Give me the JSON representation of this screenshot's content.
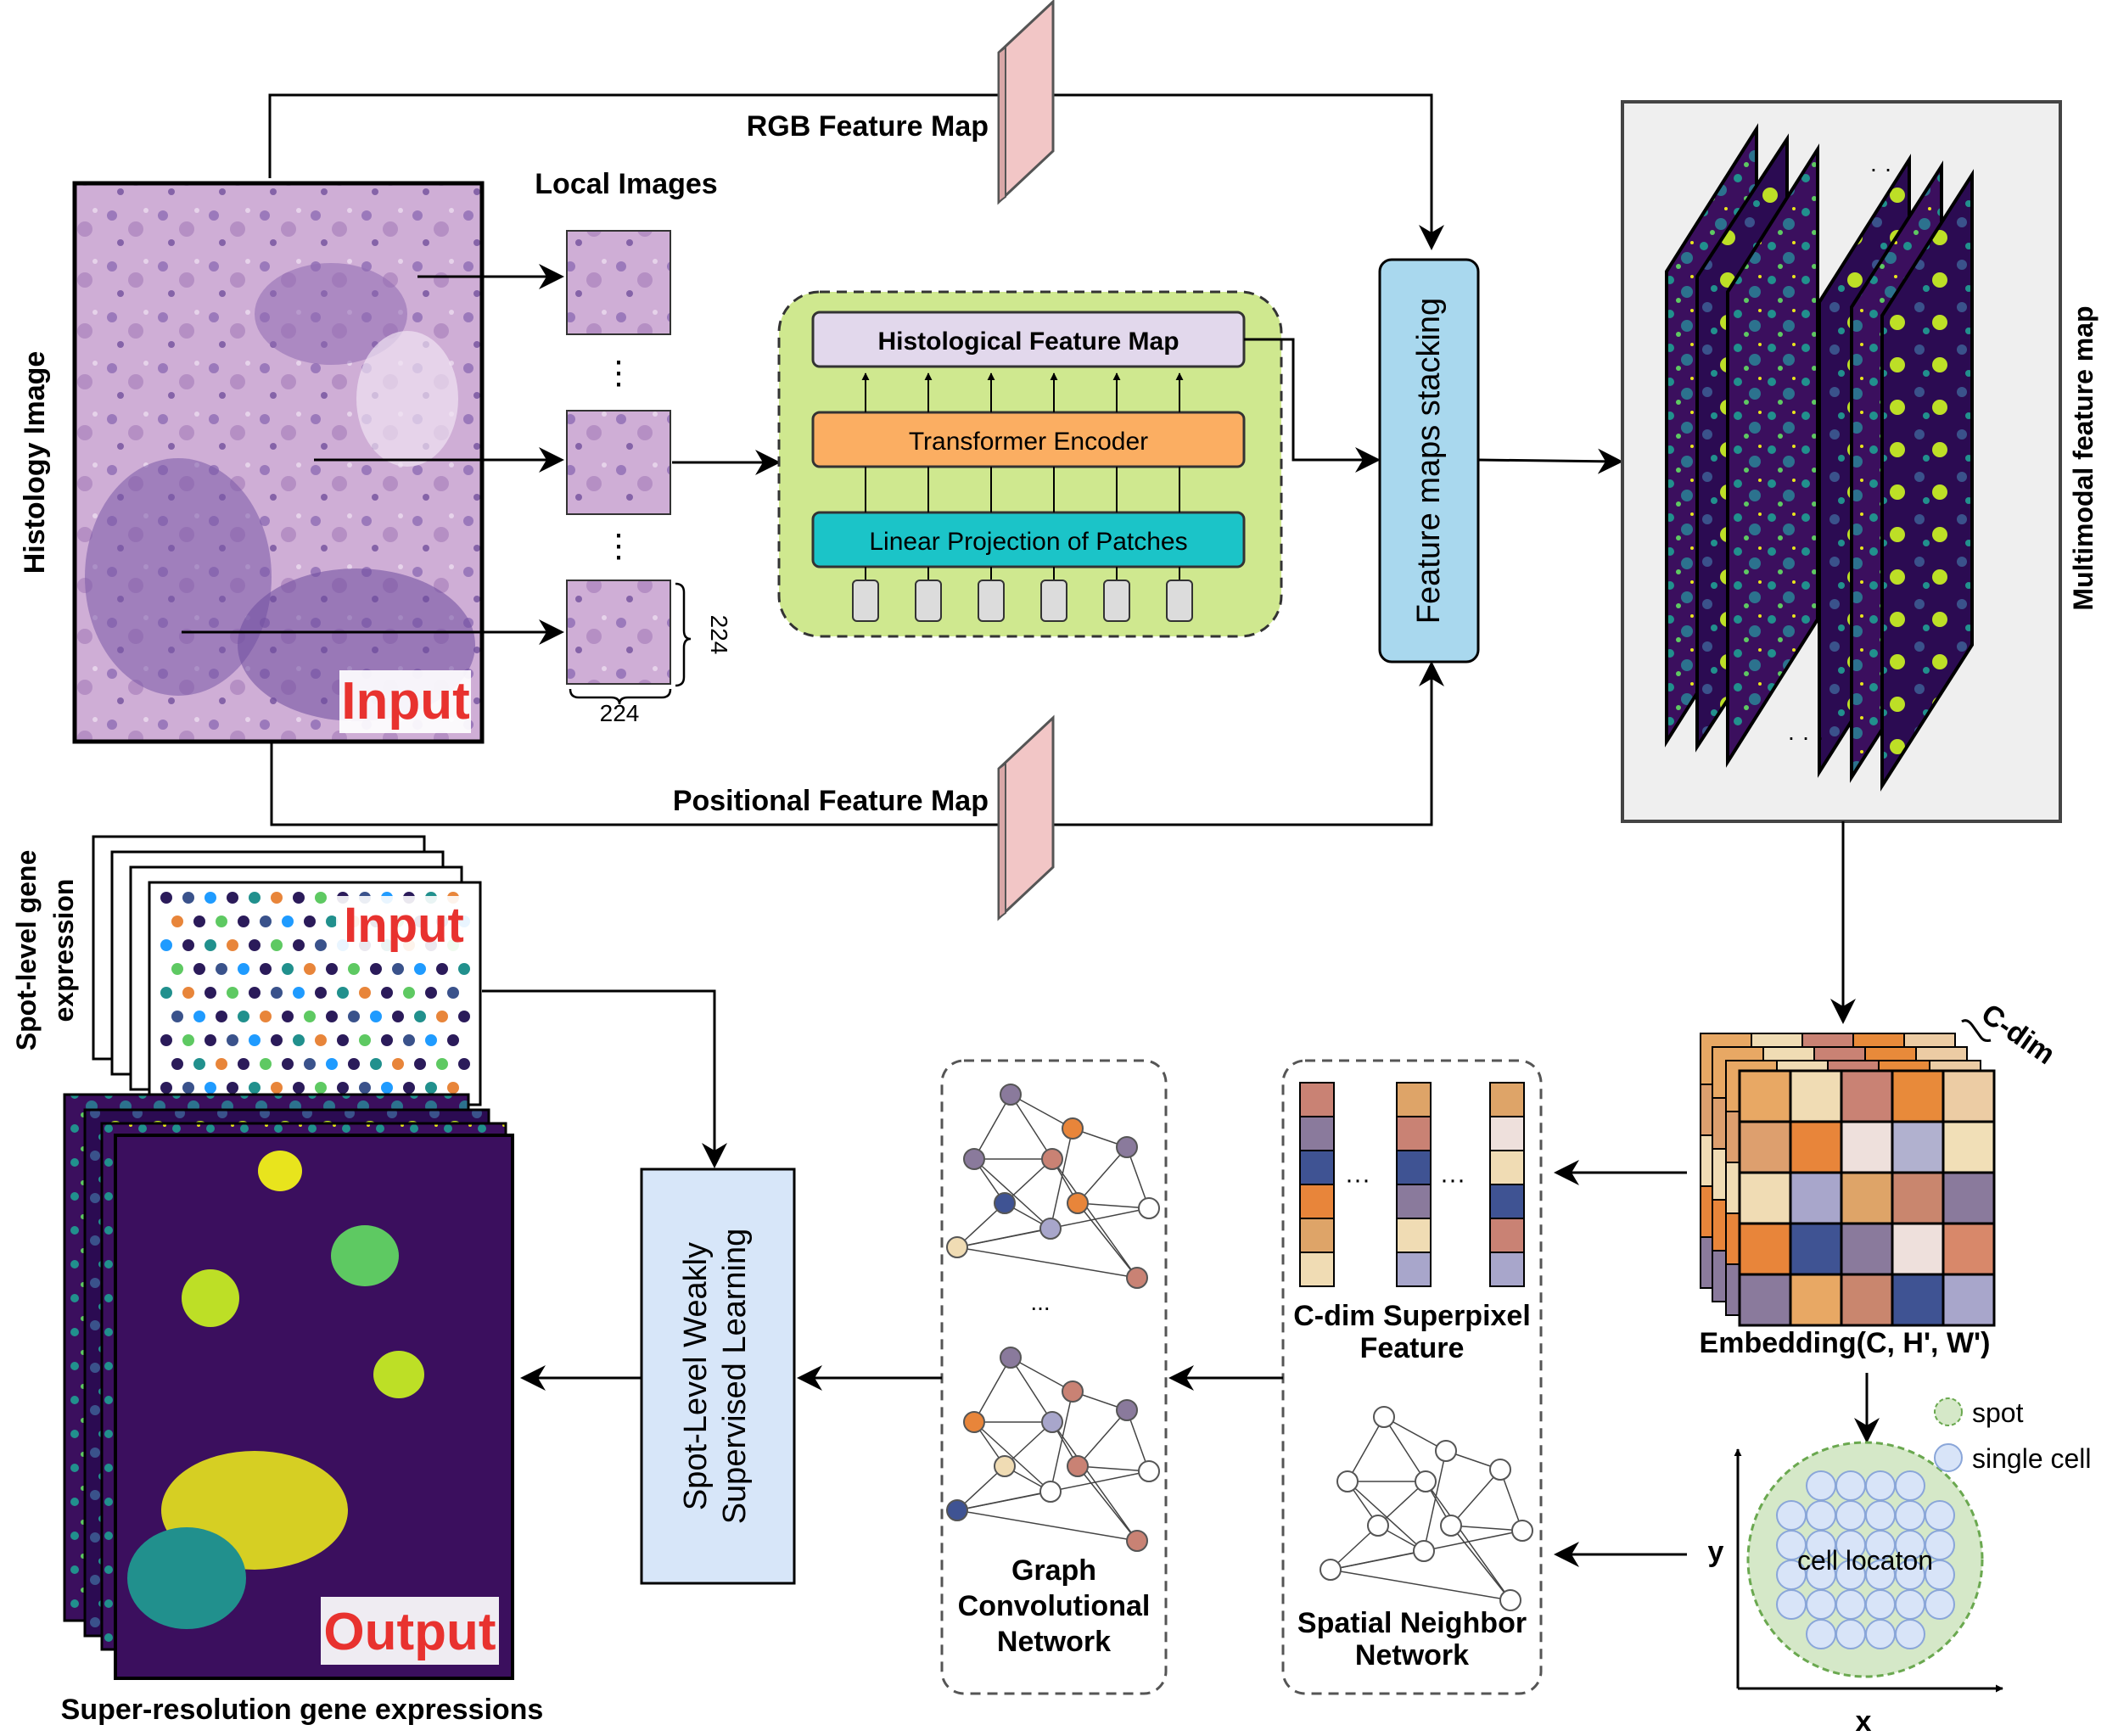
{
  "labels": {
    "rgb_feature_map": "RGB Feature Map",
    "positional_feature_map": "Positional Feature Map",
    "local_images": "Local Images",
    "histology_image": "Histology Image",
    "input": "Input",
    "dots": "⋮",
    "patch_size": "224",
    "histological_feature_map": "Histological Feature Map",
    "transformer_encoder": "Transformer Encoder",
    "linear_projection": "Linear Projection of Patches",
    "feature_maps_stacking": "Feature maps stacking",
    "multimodal_feature_map": "Multimodal feature map",
    "ellipsis": "· · ·",
    "spot_level_gene_expression_line1": "Spot-level gene",
    "spot_level_gene_expression_line2": "expression",
    "input2": "Input",
    "output": "Output",
    "super_resolution": "Super-resolution gene expressions",
    "weakly_supervised_line1": "Spot-Level Weakly",
    "weakly_supervised_line2": "Supervised Learning",
    "gcn_line1": "Graph",
    "gcn_line2": "Convolutional",
    "gcn_line3": "Network",
    "gcn_dots": "...",
    "superpixel_line1": "C-dim Superpixel",
    "superpixel_line2": "Feature",
    "superpixel_dots": "···",
    "spatial_line1": "Spatial Neighbor",
    "spatial_line2": "Network",
    "embedding": "Embedding(C, H', W')",
    "c_dim": "C-dim",
    "spot": "spot",
    "single_cell": "single cell",
    "cell_location": "cell locaton",
    "axis_x": "x",
    "axis_y": "y"
  },
  "colors": {
    "histology_pink": "#c9a2d2",
    "histology_purple": "#7a5aa8",
    "filter_pink": "#f2c6c6",
    "panel_green": "#cfe88f",
    "hist_map_fill": "#e2d8ec",
    "transformer_fill": "#fbae62",
    "projection_fill": "#1bc4c8",
    "stacking_fill": "#a9d8ee",
    "weakly_fill": "#d7e6f9",
    "viridis_dark": "#3b0f5e",
    "viridis_teal": "#21908d",
    "viridis_yellow": "#e8e41d",
    "input_red": "#e8322f",
    "spot_green": "#d5e8c8",
    "cell_blue": "#d8e4f8"
  },
  "embedding_grid": [
    [
      "#e8a864",
      "#f0dcb4",
      "#c98274",
      "#e88a3a",
      "#eccca4"
    ],
    [
      "#dd9f6e",
      "#e8853a",
      "#eee0dc",
      "#b1b1cf",
      "#f1dfb7"
    ],
    [
      "#f0dcb4",
      "#a8a6cb",
      "#dea468",
      "#c9866e",
      "#8a7a9c"
    ],
    [
      "#e8853a",
      "#3f5393",
      "#8a7a9c",
      "#eee0dc",
      "#d8886a"
    ],
    [
      "#8a7a9c",
      "#e8a864",
      "#c9866e",
      "#3f5393",
      "#a8a6cb"
    ]
  ],
  "superpixel_columns": [
    [
      "#c98274",
      "#8a7a9c",
      "#3f5393",
      "#e8853a",
      "#dea468",
      "#f0dcb4"
    ],
    [
      "#dea468",
      "#c98274",
      "#3f5393",
      "#8a7a9c",
      "#f0dcb4",
      "#a8a6cb"
    ],
    [
      "#dea468",
      "#eee0dc",
      "#f0dcb4",
      "#3f5393",
      "#c98274",
      "#a8a6cb"
    ]
  ]
}
